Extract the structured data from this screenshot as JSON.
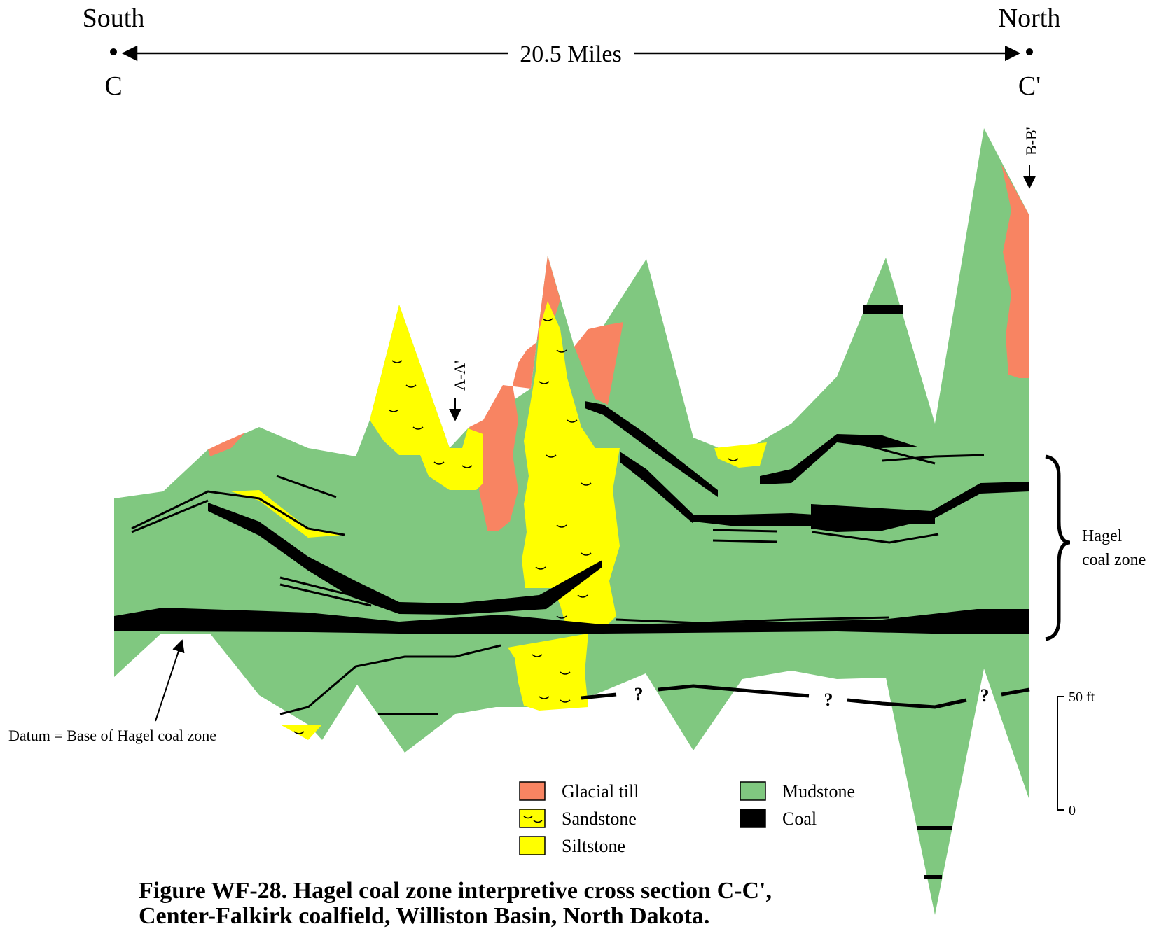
{
  "direction": {
    "left": "South",
    "right": "North"
  },
  "section": {
    "start": "C",
    "end": "C'",
    "distance": "20.5 Miles"
  },
  "crossings": {
    "a": "A-A'",
    "b": "B-B'"
  },
  "zone": {
    "line1": "Hagel",
    "line2": "coal zone"
  },
  "datum": "Datum = Base of Hagel coal zone",
  "scale": {
    "top": "50 ft",
    "bottom": "0"
  },
  "unknown_mark": "?",
  "legend": {
    "glacial_till": "Glacial till",
    "sandstone": "Sandstone",
    "siltstone": "Siltstone",
    "mudstone": "Mudstone",
    "coal": "Coal"
  },
  "colors": {
    "glacial_till": "#f88462",
    "sandstone": "#ffff00",
    "siltstone": "#ffff00",
    "mudstone": "#80c880",
    "coal": "#000000"
  },
  "caption": {
    "line1": "Figure WF-28.  Hagel coal zone interpretive cross section C-C',",
    "line2": "Center-Falkirk coalfield, Williston Basin, North Dakota."
  }
}
